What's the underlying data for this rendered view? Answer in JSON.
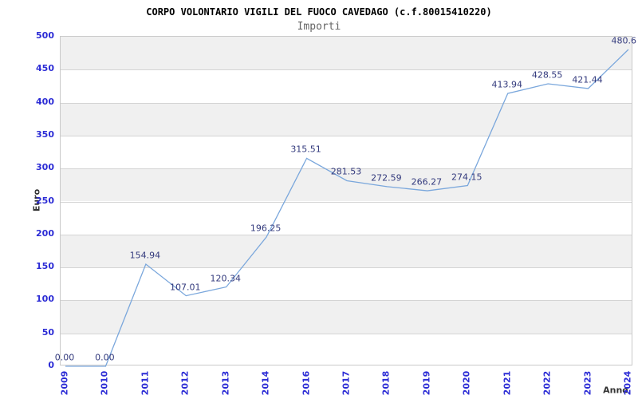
{
  "header": {
    "title": "CORPO VOLONTARIO VIGILI DEL FUOCO CAVEDAGO (c.f.80015410220)",
    "subtitle": "Importi"
  },
  "chart_data": {
    "type": "line",
    "title": "CORPO VOLONTARIO VIGILI DEL FUOCO CAVEDAGO (c.f.80015410220)",
    "subtitle": "Importi",
    "xlabel": "Anno",
    "ylabel": "Euro",
    "categories": [
      "2009",
      "2010",
      "2011",
      "2012",
      "2013",
      "2014",
      "2016",
      "2017",
      "2018",
      "2019",
      "2020",
      "2021",
      "2022",
      "2023",
      "2024"
    ],
    "values": [
      0.0,
      0.0,
      154.94,
      107.01,
      120.34,
      196.25,
      315.51,
      281.53,
      272.59,
      266.27,
      274.15,
      413.94,
      428.55,
      421.44,
      480.6
    ],
    "point_labels": [
      "0.00",
      "0.00",
      "154.94",
      "107.01",
      "120.34",
      "196.25",
      "315.51",
      "281.53",
      "272.59",
      "266.27",
      "274.15",
      "413.94",
      "428.55",
      "421.44",
      "480.6"
    ],
    "ylim": [
      0,
      500
    ],
    "ytick_step": 50,
    "grid": true,
    "alternating_bands": true,
    "legend": "none",
    "colors": {
      "line": "#7aa7dc",
      "tick_label": "#2c2cd5",
      "data_label": "#333a7d",
      "band": "#f0f0f0",
      "grid": "#d4d4d4",
      "plot_border": "#c9c9c9",
      "title": "#000000",
      "subtitle": "#666666",
      "axis_label": "#333333"
    }
  }
}
